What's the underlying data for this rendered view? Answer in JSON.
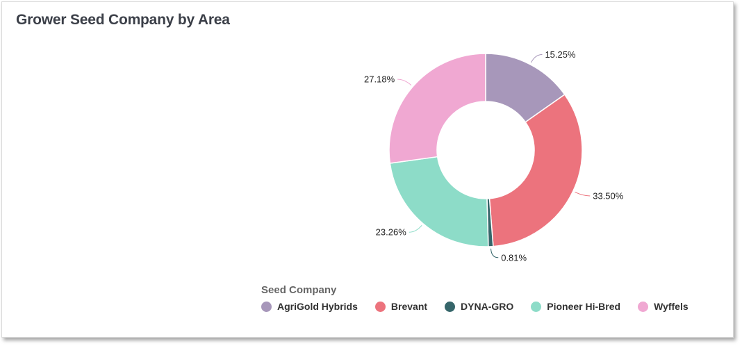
{
  "card": {
    "title": "Grower Seed Company by Area"
  },
  "legend": {
    "title": "Seed Company"
  },
  "chart_data": {
    "type": "pie",
    "variant": "donut",
    "title": "Grower Seed Company by Area",
    "legend_title": "Seed Company",
    "legend_position": "bottom",
    "series": [
      {
        "name": "AgriGold Hybrids",
        "value": 15.25,
        "label": "15.25%",
        "color": "#a797ba"
      },
      {
        "name": "Brevant",
        "value": 33.5,
        "label": "33.50%",
        "color": "#ec737d"
      },
      {
        "name": "DYNA-GRO",
        "value": 0.81,
        "label": "0.81%",
        "color": "#36666a"
      },
      {
        "name": "Pioneer Hi-Bred",
        "value": 23.26,
        "label": "23.26%",
        "color": "#8ddcc8"
      },
      {
        "name": "Wyffels",
        "value": 27.18,
        "label": "27.18%",
        "color": "#f0a8d2"
      }
    ]
  }
}
